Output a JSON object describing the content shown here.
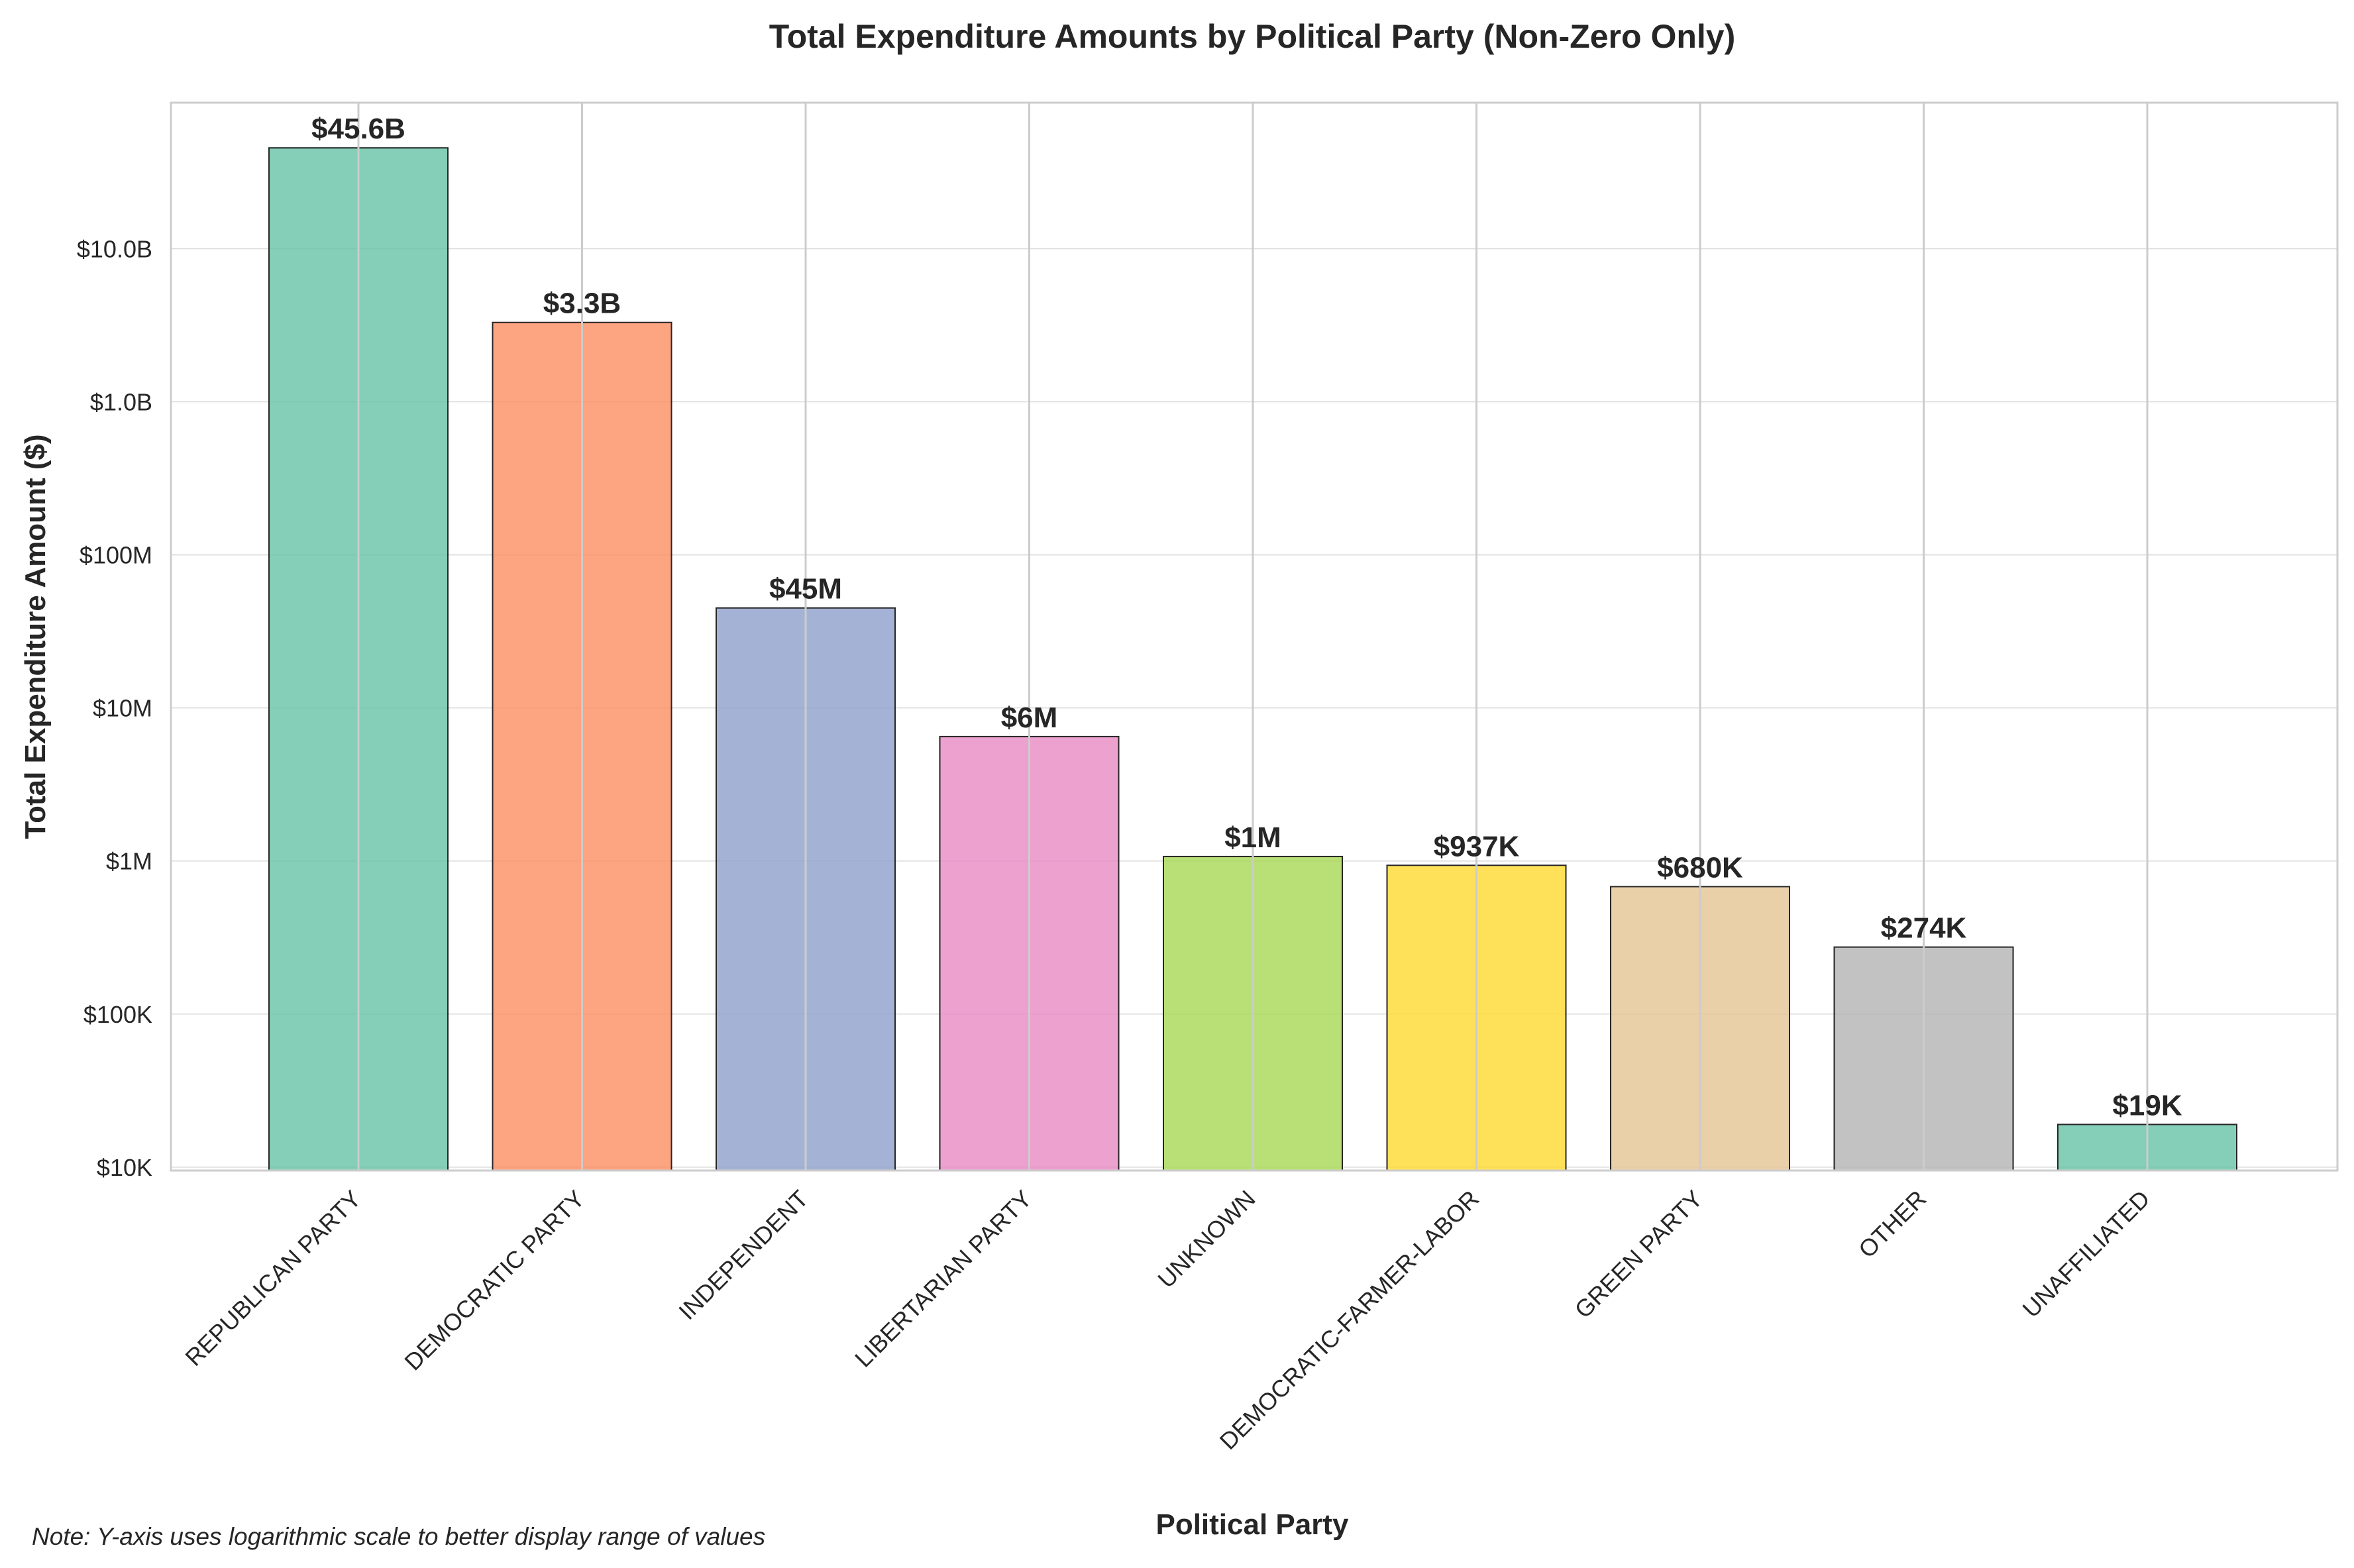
{
  "chart_data": {
    "type": "bar",
    "title": "Total Expenditure Amounts by Political Party (Non-Zero Only)",
    "xlabel": "Political Party",
    "ylabel": "Total Expenditure Amount ($)",
    "yscale": "log",
    "ylim": [
      9500,
      90000000000
    ],
    "yticks": [
      10000,
      100000,
      1000000,
      10000000,
      100000000,
      1000000000,
      10000000000
    ],
    "ytick_labels": [
      "$10K",
      "$100K",
      "$1M",
      "$10M",
      "$100M",
      "$1.0B",
      "$10.0B"
    ],
    "grid": true,
    "categories": [
      "REPUBLICAN PARTY",
      "DEMOCRATIC PARTY",
      "INDEPENDENT",
      "LIBERTARIAN PARTY",
      "UNKNOWN",
      "DEMOCRATIC-FARMER-LABOR",
      "GREEN PARTY",
      "OTHER",
      "UNAFFILIATED"
    ],
    "values": [
      45600000000,
      3300000000,
      45000000,
      6500000,
      1070000,
      937000,
      680000,
      274000,
      19000
    ],
    "data_labels": [
      "$45.6B",
      "$3.3B",
      "$45M",
      "$6M",
      "$1M",
      "$937K",
      "$680K",
      "$274K",
      "$19K"
    ],
    "colors": [
      "#66c2a5",
      "#fc8d62",
      "#8da0cb",
      "#e78ac3",
      "#a6d854",
      "#ffd92f",
      "#e5c494",
      "#b3b3b3",
      "#66c2a5"
    ],
    "note": "Note: Y-axis uses logarithmic scale to better display range of values"
  }
}
